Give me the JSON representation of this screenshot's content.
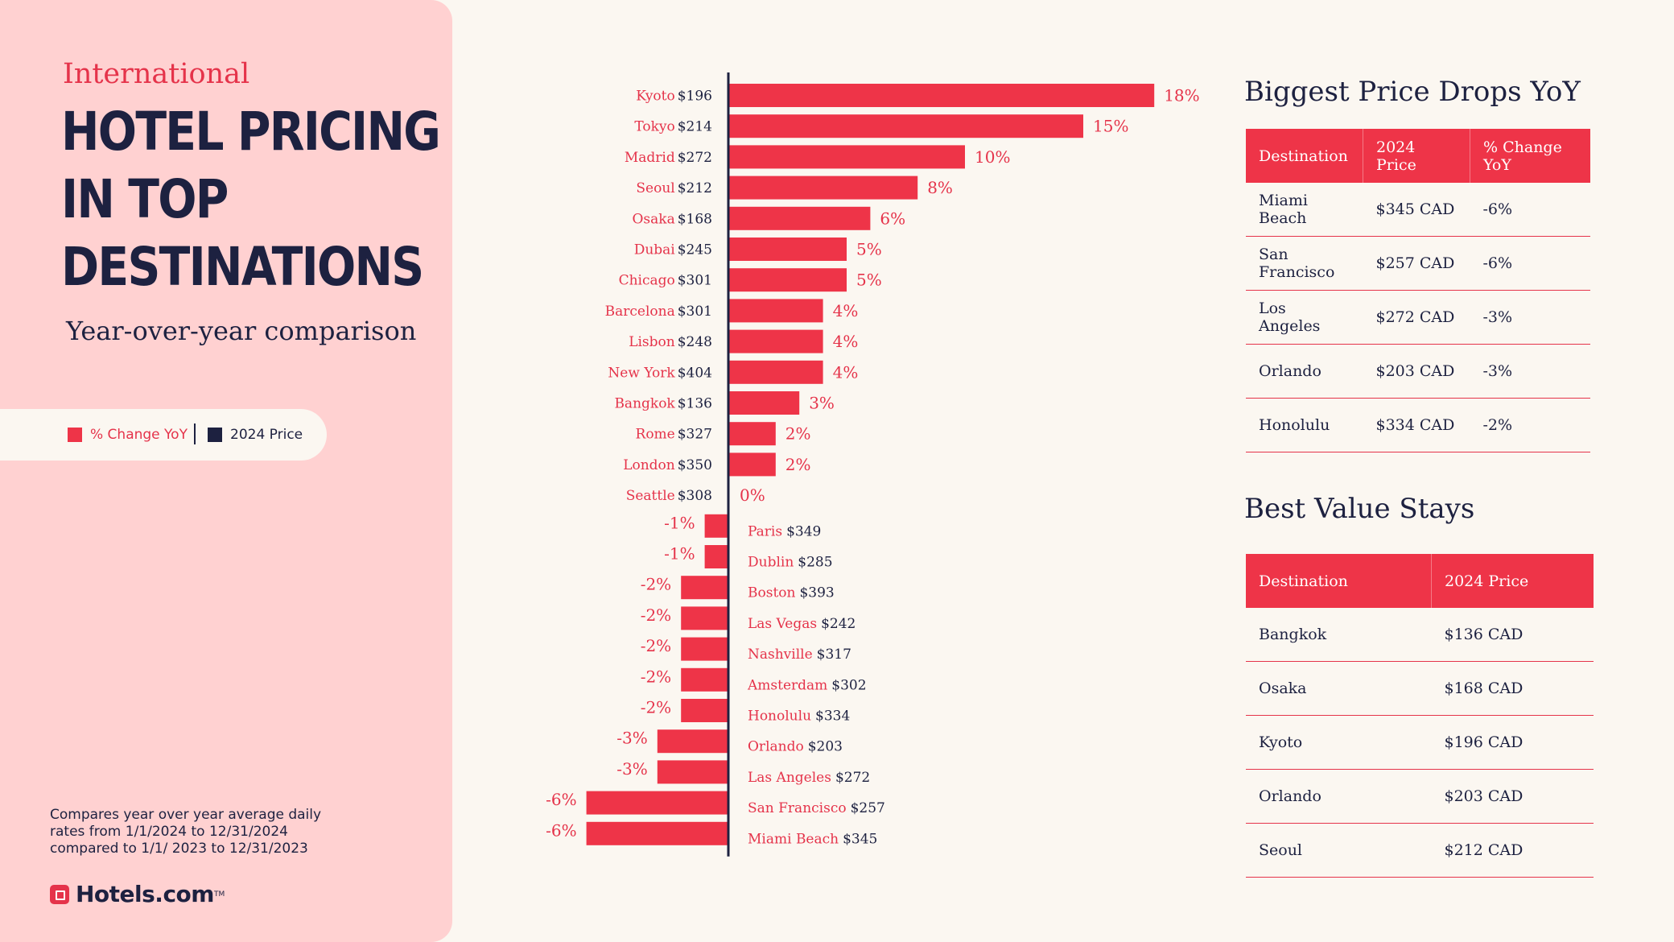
{
  "header": {
    "eyebrow": "International",
    "title_lines": [
      "HOTEL PRICING",
      "IN TOP",
      "DESTINATIONS"
    ],
    "subtitle": "Year-over-year comparison"
  },
  "legend": {
    "change_label": "% Change YoY",
    "price_label": "2024 Price",
    "change_color": "#ee3448",
    "price_color": "#1d2140"
  },
  "footnote": {
    "lines": [
      "Compares year over year average daily",
      "rates from 1/1/2024 to 12/31/2024",
      "compared to 1/1/ 2023 to 12/31/2023"
    ]
  },
  "brand": {
    "name": "Hotels.com",
    "tm": "TM"
  },
  "chart_data": {
    "type": "bar",
    "orientation": "horizontal",
    "series": [
      {
        "name": "% Change YoY",
        "unit": "%"
      }
    ],
    "bar_color": "#ee3448",
    "rows": [
      {
        "city": "Kyoto",
        "price": "$196",
        "change": 18,
        "label": "18%"
      },
      {
        "city": "Tokyo",
        "price": "$214",
        "change": 15,
        "label": "15%"
      },
      {
        "city": "Madrid",
        "price": "$272",
        "change": 10,
        "label": "10%"
      },
      {
        "city": "Seoul",
        "price": "$212",
        "change": 8,
        "label": "8%"
      },
      {
        "city": "Osaka",
        "price": "$168",
        "change": 6,
        "label": "6%"
      },
      {
        "city": "Dubai",
        "price": "$245",
        "change": 5,
        "label": "5%"
      },
      {
        "city": "Chicago",
        "price": "$301",
        "change": 5,
        "label": "5%"
      },
      {
        "city": "Barcelona",
        "price": "$301",
        "change": 4,
        "label": "4%"
      },
      {
        "city": "Lisbon",
        "price": "$248",
        "change": 4,
        "label": "4%"
      },
      {
        "city": "New York",
        "price": "$404",
        "change": 4,
        "label": "4%"
      },
      {
        "city": "Bangkok",
        "price": "$136",
        "change": 3,
        "label": "3%"
      },
      {
        "city": "Rome",
        "price": "$327",
        "change": 2,
        "label": "2%"
      },
      {
        "city": "London",
        "price": "$350",
        "change": 2,
        "label": "2%"
      },
      {
        "city": "Seattle",
        "price": "$308",
        "change": 0,
        "label": "0%"
      },
      {
        "city": "Paris",
        "price": "$349",
        "change": -1,
        "label": "-1%"
      },
      {
        "city": "Dublin",
        "price": "$285",
        "change": -1,
        "label": "-1%"
      },
      {
        "city": "Boston",
        "price": "$393",
        "change": -2,
        "label": "-2%"
      },
      {
        "city": "Las Vegas",
        "price": "$242",
        "change": -2,
        "label": "-2%"
      },
      {
        "city": "Nashville",
        "price": "$317",
        "change": -2,
        "label": "-2%"
      },
      {
        "city": "Amsterdam",
        "price": "$302",
        "change": -2,
        "label": "-2%"
      },
      {
        "city": "Honolulu",
        "price": "$334",
        "change": -2,
        "label": "-2%"
      },
      {
        "city": "Orlando",
        "price": "$203",
        "change": -3,
        "label": "-3%"
      },
      {
        "city": "Las Angeles",
        "price": "$272",
        "change": -3,
        "label": "-3%"
      },
      {
        "city": "San Francisco",
        "price": "$257",
        "change": -6,
        "label": "-6%"
      },
      {
        "city": "Miami Beach",
        "price": "$345",
        "change": -6,
        "label": "-6%"
      }
    ]
  },
  "drops_table": {
    "title": "Biggest Price Drops YoY",
    "headers": [
      "Destination",
      "2024 Price",
      "% Change YoY"
    ],
    "rows": [
      [
        "Miami Beach",
        "$345 CAD",
        "-6%"
      ],
      [
        "San Francisco",
        "$257 CAD",
        "-6%"
      ],
      [
        "Los Angeles",
        "$272 CAD",
        "-3%"
      ],
      [
        "Orlando",
        "$203 CAD",
        "-3%"
      ],
      [
        "Honolulu",
        "$334 CAD",
        "-2%"
      ]
    ]
  },
  "value_table": {
    "title": "Best Value Stays",
    "headers": [
      "Destination",
      "2024 Price"
    ],
    "rows": [
      [
        "Bangkok",
        "$136 CAD"
      ],
      [
        "Osaka",
        "$168 CAD"
      ],
      [
        "Kyoto",
        "$196 CAD"
      ],
      [
        "Orlando",
        "$203 CAD"
      ],
      [
        "Seoul",
        "$212 CAD"
      ]
    ]
  }
}
